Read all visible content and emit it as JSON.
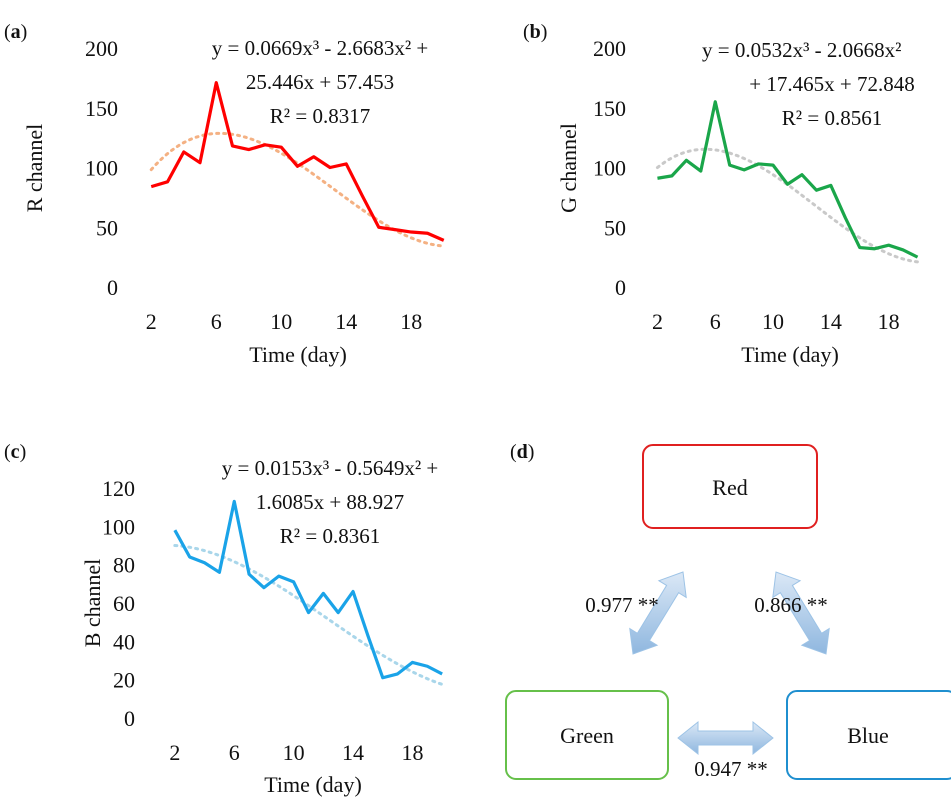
{
  "chart_data": [
    {
      "panel": "(a)",
      "type": "line",
      "ylabel": "R channel",
      "xlabel": "Time (day)",
      "ylim": [
        0,
        200
      ],
      "yticks": [
        0,
        50,
        100,
        150,
        200
      ],
      "xlim": [
        1,
        21
      ],
      "xticks": [
        2,
        6,
        10,
        14,
        18
      ],
      "color": "#ff0000",
      "trend_color": "#f4b183",
      "equation_lines": [
        "y = 0.0669x³ - 2.6683x² +",
        "25.446x + 57.453",
        "R² = 0.8317"
      ],
      "x": [
        2,
        3,
        4,
        5,
        6,
        7,
        8,
        9,
        10,
        11,
        12,
        13,
        14,
        15,
        16,
        17,
        18,
        19,
        20
      ],
      "values": [
        84,
        88,
        113,
        104,
        171,
        118,
        115,
        119,
        117,
        101,
        109,
        100,
        103,
        76,
        50,
        48,
        46,
        45,
        39
      ],
      "trend": {
        "coefficients": [
          0.0669,
          -2.6683,
          25.446,
          57.453
        ]
      }
    },
    {
      "panel": "(b)",
      "type": "line",
      "ylabel": "G channel",
      "xlabel": "Time (day)",
      "ylim": [
        0,
        200
      ],
      "yticks": [
        0,
        50,
        100,
        150,
        200
      ],
      "xlim": [
        1,
        21
      ],
      "xticks": [
        2,
        6,
        10,
        14,
        18
      ],
      "color": "#1aa64a",
      "trend_color": "#c9c9c9",
      "equation_lines": [
        "y = 0.0532x³ - 2.0668x²",
        "+ 17.465x + 72.848",
        "R² = 0.8561"
      ],
      "x": [
        2,
        3,
        4,
        5,
        6,
        7,
        8,
        9,
        10,
        11,
        12,
        13,
        14,
        15,
        16,
        17,
        18,
        19,
        20
      ],
      "values": [
        91,
        93,
        106,
        97,
        155,
        102,
        98,
        103,
        102,
        86,
        94,
        81,
        85,
        58,
        33,
        32,
        35,
        31,
        25
      ],
      "trend": {
        "coefficients": [
          0.0532,
          -2.0668,
          17.465,
          72.848
        ]
      }
    },
    {
      "panel": "(c)",
      "type": "line",
      "ylabel": "B channel",
      "xlabel": "Time (day)",
      "ylim": [
        0,
        120
      ],
      "yticks": [
        0,
        20,
        40,
        60,
        80,
        100,
        120
      ],
      "xlim": [
        1,
        21
      ],
      "xticks": [
        2,
        6,
        10,
        14,
        18
      ],
      "color": "#1aa3e8",
      "trend_color": "#a9d6ea",
      "equation_lines": [
        "y = 0.0153x³ - 0.5649x² +",
        "1.6085x + 88.927",
        "R² = 0.8361"
      ],
      "x": [
        2,
        3,
        4,
        5,
        6,
        7,
        8,
        9,
        10,
        11,
        12,
        13,
        14,
        15,
        16,
        17,
        18,
        19,
        20
      ],
      "values": [
        98,
        84,
        81,
        76,
        113,
        75,
        68,
        74,
        71,
        55,
        65,
        55,
        66,
        43,
        21,
        23,
        29,
        27,
        23
      ],
      "trend": {
        "coefficients": [
          0.0153,
          -0.5649,
          1.6085,
          88.927
        ]
      }
    }
  ],
  "diagram": {
    "panel": "(d)",
    "nodes": [
      {
        "id": "red",
        "label": "Red",
        "color": "#e02020"
      },
      {
        "id": "green",
        "label": "Green",
        "color": "#66c04a"
      },
      {
        "id": "blue",
        "label": "Blue",
        "color": "#1f8fcf"
      }
    ],
    "edges": [
      {
        "from": "red",
        "to": "green",
        "label": "0.977 **"
      },
      {
        "from": "red",
        "to": "blue",
        "label": "0.866 **"
      },
      {
        "from": "green",
        "to": "blue",
        "label": "0.947 **"
      }
    ],
    "arrow_color": "#9dc3e6"
  }
}
